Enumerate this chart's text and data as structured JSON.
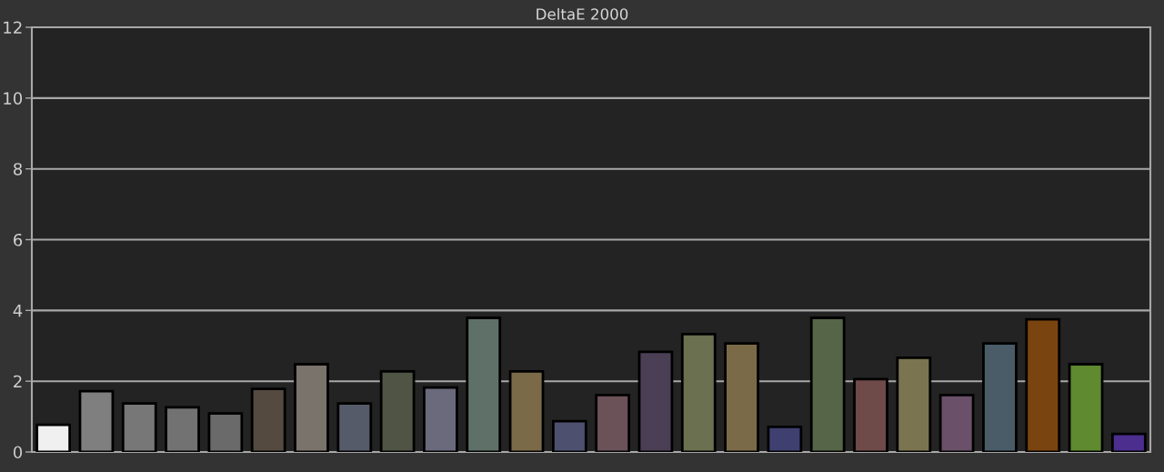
{
  "chart_data": {
    "type": "bar",
    "title": "DeltaE 2000",
    "categories": [
      null,
      null,
      null,
      null,
      null,
      null,
      null,
      null,
      null,
      null,
      null,
      null,
      null,
      null,
      null,
      null,
      null,
      null,
      null,
      null,
      null,
      null,
      null,
      null,
      null,
      null
    ],
    "values": [
      0.77,
      1.72,
      1.37,
      1.26,
      1.09,
      1.78,
      2.48,
      1.37,
      2.28,
      1.82,
      3.79,
      2.28,
      0.87,
      1.61,
      2.83,
      3.33,
      3.07,
      0.71,
      3.79,
      2.06,
      2.66,
      1.61,
      3.07,
      3.75,
      2.48,
      0.51
    ],
    "colors": [
      "#f0f0f0",
      "#7f7f7f",
      "#777777",
      "#727272",
      "#6a6a6a",
      "#554a40",
      "#7a736c",
      "#555b68",
      "#4f5444",
      "#6b6a7c",
      "#5f7068",
      "#7a6a48",
      "#4e5070",
      "#6b5258",
      "#4a3f55",
      "#6a7050",
      "#7a6a48",
      "#3f4070",
      "#566548",
      "#6e4a48",
      "#7a7550",
      "#6a5068",
      "#4a5c68",
      "#7a4410",
      "#5f8a30",
      "#4b2e8e"
    ],
    "ylim": [
      0,
      12
    ],
    "yticks": [
      0,
      2,
      4,
      6,
      8,
      10,
      12
    ],
    "grid": "y",
    "tick_labels": "y"
  }
}
